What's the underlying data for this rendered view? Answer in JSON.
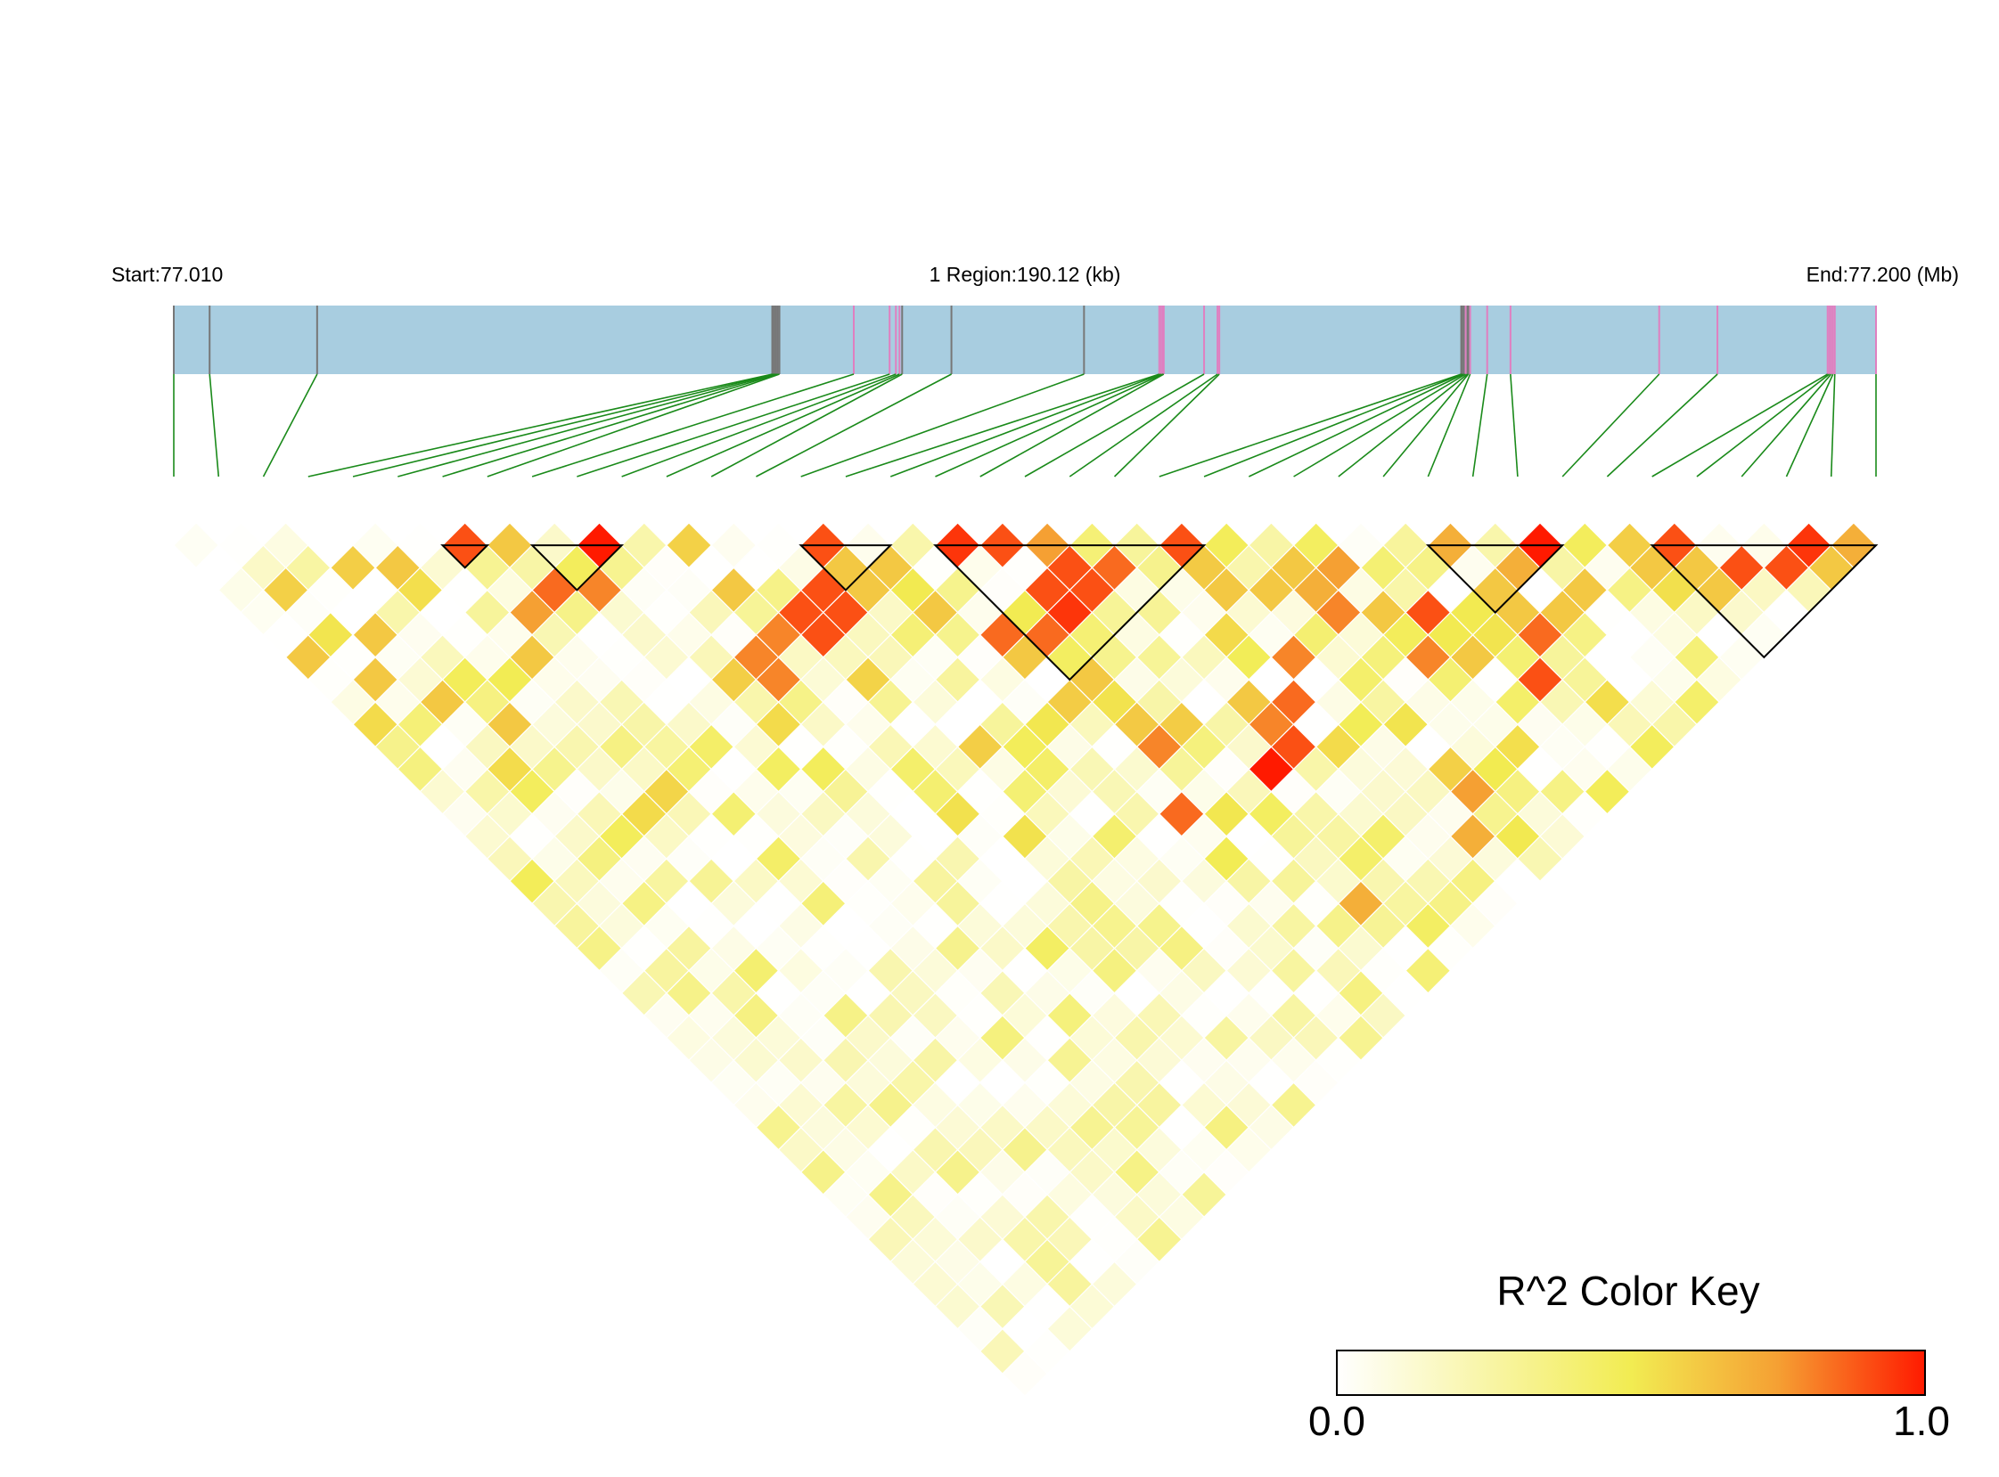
{
  "header": {
    "start_label": "Start:77.010",
    "region_label": "1 Region:190.12 (kb)",
    "end_label": "End:77.200 (Mb)"
  },
  "color_key": {
    "title": "R^2 Color Key",
    "min_label": "0.0",
    "max_label": "1.0",
    "stops": [
      "#ffffff",
      "#f2ec52",
      "#f5a033",
      "#ff1a00"
    ]
  },
  "colors": {
    "region_bar": "#a8cde0",
    "marker_line": "#777777",
    "marker_highlight": "#e07fc0",
    "connector": "#1a8a1a",
    "block_outline": "#000000"
  },
  "chart_data": {
    "type": "heatmap",
    "title": "",
    "chromosome": "1",
    "region_start_mb": 77.01,
    "region_end_mb": 77.2,
    "region_length_kb": 190.12,
    "snp_count": 39,
    "snp_positions_mb": [
      77.01,
      77.014,
      77.026,
      77.0768,
      77.077,
      77.0772,
      77.0774,
      77.0776,
      77.0859,
      77.0899,
      77.0906,
      77.091,
      77.0913,
      77.0968,
      77.1116,
      77.12,
      77.1202,
      77.1204,
      77.1205,
      77.125,
      77.1265,
      77.1267,
      77.1537,
      77.1538,
      77.154,
      77.1542,
      77.1544,
      77.1545,
      77.1547,
      77.1566,
      77.1592,
      77.1758,
      77.1823,
      77.1946,
      77.1948,
      77.195,
      77.1952,
      77.1954,
      77.2
    ],
    "highlighted_snps": [
      8,
      9,
      10,
      11,
      15,
      16,
      17,
      18,
      19,
      20,
      21,
      25,
      28,
      29,
      30,
      31,
      32,
      33,
      34,
      35,
      36,
      37,
      38
    ],
    "r2_scale": [
      0,
      1
    ],
    "haplotype_blocks": [
      [
        6,
        7
      ],
      [
        8,
        10
      ],
      [
        14,
        16
      ],
      [
        17,
        23
      ],
      [
        28,
        31
      ],
      [
        33,
        38
      ]
    ],
    "strong_pairs": [
      {
        "i": 6,
        "j": 7,
        "r2": 0.9
      },
      {
        "i": 9,
        "j": 10,
        "r2": 1.0
      },
      {
        "i": 14,
        "j": 15,
        "r2": 0.9
      },
      {
        "i": 17,
        "j": 18,
        "r2": 0.95
      },
      {
        "i": 18,
        "j": 19,
        "r2": 0.9
      },
      {
        "i": 19,
        "j": 20,
        "r2": 0.75
      },
      {
        "i": 22,
        "j": 23,
        "r2": 0.9
      },
      {
        "i": 28,
        "j": 29,
        "r2": 0.7
      },
      {
        "i": 30,
        "j": 31,
        "r2": 1.0
      },
      {
        "i": 33,
        "j": 34,
        "r2": 0.9
      },
      {
        "i": 36,
        "j": 37,
        "r2": 0.95
      },
      {
        "i": 37,
        "j": 38,
        "r2": 0.7
      },
      {
        "i": 18,
        "j": 21,
        "r2": 0.9
      },
      {
        "i": 19,
        "j": 22,
        "r2": 0.9
      },
      {
        "i": 18,
        "j": 22,
        "r2": 0.95
      },
      {
        "i": 19,
        "j": 21,
        "r2": 0.9
      },
      {
        "i": 20,
        "j": 22,
        "r2": 0.85
      },
      {
        "i": 29,
        "j": 31,
        "r2": 0.7
      },
      {
        "i": 34,
        "j": 36,
        "r2": 0.9
      },
      {
        "i": 35,
        "j": 37,
        "r2": 0.9
      },
      {
        "i": 7,
        "j": 10,
        "r2": 0.85
      },
      {
        "i": 8,
        "j": 11,
        "r2": 0.8
      },
      {
        "i": 6,
        "j": 10,
        "r2": 0.75
      },
      {
        "i": 12,
        "j": 16,
        "r2": 0.9
      },
      {
        "i": 13,
        "j": 17,
        "r2": 0.9
      },
      {
        "i": 12,
        "j": 17,
        "r2": 0.9
      },
      {
        "i": 13,
        "j": 16,
        "r2": 0.9
      },
      {
        "i": 10,
        "j": 16,
        "r2": 0.8
      },
      {
        "i": 11,
        "j": 16,
        "r2": 0.8
      },
      {
        "i": 10,
        "j": 17,
        "r2": 0.8
      },
      {
        "i": 16,
        "j": 21,
        "r2": 0.85
      },
      {
        "i": 17,
        "j": 22,
        "r2": 0.85
      },
      {
        "i": 24,
        "j": 27,
        "r2": 0.7
      },
      {
        "i": 25,
        "j": 27,
        "r2": 0.75
      },
      {
        "i": 24,
        "j": 28,
        "r2": 0.8
      },
      {
        "i": 22,
        "j": 28,
        "r2": 0.8
      },
      {
        "i": 21,
        "j": 29,
        "r2": 0.85
      },
      {
        "i": 20,
        "j": 30,
        "r2": 0.9
      },
      {
        "i": 19,
        "j": 30,
        "r2": 1.0
      },
      {
        "i": 20,
        "j": 29,
        "r2": 0.8
      },
      {
        "i": 26,
        "j": 30,
        "r2": 0.9
      },
      {
        "i": 25,
        "j": 31,
        "r2": 0.8
      },
      {
        "i": 27,
        "j": 34,
        "r2": 0.9
      },
      {
        "i": 28,
        "j": 33,
        "r2": 0.85
      },
      {
        "i": 22,
        "j": 36,
        "r2": 0.7
      },
      {
        "i": 23,
        "j": 35,
        "r2": 0.75
      },
      {
        "i": 17,
        "j": 27,
        "r2": 0.8
      },
      {
        "i": 16,
        "j": 29,
        "r2": 0.85
      },
      {
        "i": 18,
        "j": 35,
        "r2": 0.7
      }
    ]
  }
}
